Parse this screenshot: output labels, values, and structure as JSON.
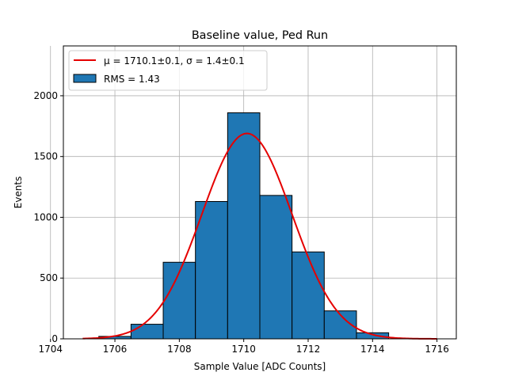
{
  "chart_data": {
    "type": "bar",
    "title": "Baseline value, Ped Run",
    "xlabel": "Sample Value [ADC Counts]",
    "ylabel": "Events",
    "xlim": [
      1704.4,
      1716.6
    ],
    "ylim": [
      0,
      2410
    ],
    "x_ticks": [
      1704,
      1706,
      1708,
      1710,
      1712,
      1714,
      1716
    ],
    "y_ticks": [
      0,
      500,
      1000,
      1500,
      2000
    ],
    "grid": true,
    "histogram": {
      "name": "RMS = 1.43",
      "color": "#1f77b4",
      "edgecolor": "#000000",
      "bin_edges": [
        1705.5,
        1706.5,
        1707.5,
        1708.5,
        1709.5,
        1710.5,
        1711.5,
        1712.5,
        1713.5,
        1714.5
      ],
      "values": [
        20,
        120,
        630,
        1130,
        1860,
        1180,
        715,
        230,
        50
      ]
    },
    "fit": {
      "type": "gaussian",
      "legend_label": "μ = 1710.1±0.1, σ = 1.4±0.1",
      "color": "#e50000",
      "amplitude": 1690,
      "mu": 1710.1,
      "sigma": 1.4,
      "x_range": [
        1705,
        1716
      ]
    },
    "legend_position": "upper left"
  }
}
